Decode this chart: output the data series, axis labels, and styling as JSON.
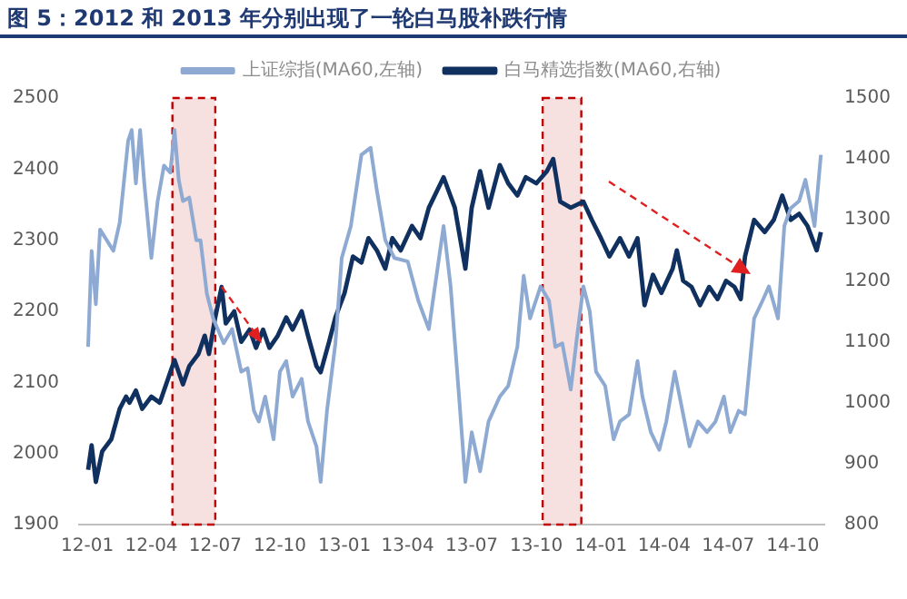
{
  "chart_data": {
    "type": "line",
    "title": "图 5：2012 和 2013 年分别出现了一轮白马股补跌行情",
    "xlim": [
      "2011-12-20",
      "2014-11-15"
    ],
    "xticks": [
      {
        "value": "2012-01",
        "label": "12-01"
      },
      {
        "value": "2012-04",
        "label": "12-04"
      },
      {
        "value": "2012-07",
        "label": "12-07"
      },
      {
        "value": "2012-10",
        "label": "12-10"
      },
      {
        "value": "2013-01",
        "label": "13-01"
      },
      {
        "value": "2013-04",
        "label": "13-04"
      },
      {
        "value": "2013-07",
        "label": "13-07"
      },
      {
        "value": "2013-10",
        "label": "13-10"
      },
      {
        "value": "2014-01",
        "label": "14-01"
      },
      {
        "value": "2014-04",
        "label": "14-04"
      },
      {
        "value": "2014-07",
        "label": "14-07"
      },
      {
        "value": "2014-10",
        "label": "14-10"
      }
    ],
    "ylim": [
      1900,
      2500
    ],
    "yticks": [
      1900,
      2000,
      2100,
      2200,
      2300,
      2400,
      2500
    ],
    "y2lim": [
      800,
      1500
    ],
    "y2ticks": [
      800,
      900,
      1000,
      1100,
      1200,
      1300,
      1400,
      1500
    ],
    "grid": false,
    "legend": "top",
    "marker": "none",
    "line_style": "solid",
    "bands": [
      {
        "axis": "x",
        "from": "2012-05-01",
        "to": "2012-07-01",
        "color": "#c00000"
      },
      {
        "axis": "x",
        "from": "2013-10-10",
        "to": "2013-12-04",
        "color": "#c00000"
      }
    ],
    "series": [
      {
        "name": "上证综指(MA60,左轴)",
        "color": "#8eaad2",
        "axis": "y",
        "x": [
          "2012-01-02",
          "2012-01-07",
          "2012-01-13",
          "2012-01-19",
          "2012-02-07",
          "2012-02-16",
          "2012-02-28",
          "2012-03-04",
          "2012-03-10",
          "2012-03-16",
          "2012-03-22",
          "2012-04-01",
          "2012-04-10",
          "2012-04-19",
          "2012-04-28",
          "2012-05-04",
          "2012-05-10",
          "2012-05-16",
          "2012-05-25",
          "2012-06-04",
          "2012-06-10",
          "2012-06-19",
          "2012-06-28",
          "2012-07-13",
          "2012-07-25",
          "2012-08-07",
          "2012-08-16",
          "2012-08-25",
          "2012-09-01",
          "2012-09-10",
          "2012-09-22",
          "2012-10-01",
          "2012-10-10",
          "2012-10-19",
          "2012-11-01",
          "2012-11-10",
          "2012-11-22",
          "2012-11-28",
          "2012-12-07",
          "2012-12-19",
          "2012-12-28",
          "2013-01-10",
          "2013-01-25",
          "2013-02-07",
          "2013-02-16",
          "2013-02-28",
          "2013-03-13",
          "2013-04-01",
          "2013-04-16",
          "2013-05-01",
          "2013-05-22",
          "2013-06-01",
          "2013-06-13",
          "2013-06-22",
          "2013-07-01",
          "2013-07-13",
          "2013-07-25",
          "2013-08-10",
          "2013-08-22",
          "2013-09-04",
          "2013-09-13",
          "2013-09-22",
          "2013-10-07",
          "2013-10-19",
          "2013-10-28",
          "2013-11-07",
          "2013-11-19",
          "2013-11-28",
          "2013-12-07",
          "2013-12-16",
          "2013-12-25",
          "2014-01-07",
          "2014-01-19",
          "2014-01-28",
          "2014-02-10",
          "2014-02-22",
          "2014-03-01",
          "2014-03-13",
          "2014-03-25",
          "2014-04-04",
          "2014-04-16",
          "2014-04-25",
          "2014-05-07",
          "2014-05-19",
          "2014-06-01",
          "2014-06-13",
          "2014-06-25",
          "2014-07-04",
          "2014-07-16",
          "2014-07-25",
          "2014-08-07",
          "2014-08-19",
          "2014-08-28",
          "2014-09-10",
          "2014-09-19",
          "2014-09-28",
          "2014-10-10",
          "2014-10-19",
          "2014-11-01",
          "2014-11-10"
        ],
        "values": [
          2150,
          2285,
          2210,
          2315,
          2285,
          2325,
          2440,
          2455,
          2380,
          2455,
          2380,
          2275,
          2355,
          2405,
          2395,
          2455,
          2385,
          2355,
          2360,
          2300,
          2300,
          2225,
          2190,
          2155,
          2175,
          2115,
          2120,
          2060,
          2045,
          2080,
          2020,
          2115,
          2130,
          2080,
          2105,
          2045,
          2010,
          1960,
          2060,
          2155,
          2275,
          2320,
          2420,
          2430,
          2370,
          2300,
          2275,
          2270,
          2215,
          2175,
          2320,
          2235,
          2080,
          1960,
          2030,
          1975,
          2045,
          2080,
          2095,
          2150,
          2250,
          2190,
          2235,
          2215,
          2150,
          2155,
          2090,
          2165,
          2235,
          2200,
          2115,
          2095,
          2020,
          2045,
          2055,
          2130,
          2080,
          2030,
          2005,
          2045,
          2115,
          2070,
          2010,
          2045,
          2030,
          2045,
          2080,
          2030,
          2060,
          2055,
          2190,
          2215,
          2235,
          2190,
          2320,
          2345,
          2355,
          2385,
          2320,
          2420
        ]
      },
      {
        "name": "白马精选指数(MA60,右轴)",
        "color": "#10305f",
        "axis": "y2",
        "x": [
          "2012-01-02",
          "2012-01-07",
          "2012-01-13",
          "2012-01-22",
          "2012-02-04",
          "2012-02-16",
          "2012-02-25",
          "2012-03-01",
          "2012-03-10",
          "2012-03-19",
          "2012-04-01",
          "2012-04-13",
          "2012-04-28",
          "2012-05-04",
          "2012-05-16",
          "2012-05-25",
          "2012-06-07",
          "2012-06-16",
          "2012-06-22",
          "2012-07-01",
          "2012-07-10",
          "2012-07-16",
          "2012-07-28",
          "2012-08-07",
          "2012-08-19",
          "2012-08-28",
          "2012-09-07",
          "2012-09-16",
          "2012-09-28",
          "2012-10-10",
          "2012-10-19",
          "2012-11-01",
          "2012-11-10",
          "2012-11-22",
          "2012-11-28",
          "2012-12-10",
          "2012-12-19",
          "2013-01-01",
          "2013-01-13",
          "2013-01-25",
          "2013-02-04",
          "2013-02-16",
          "2013-02-28",
          "2013-03-10",
          "2013-03-22",
          "2013-04-07",
          "2013-04-19",
          "2013-05-01",
          "2013-05-22",
          "2013-06-07",
          "2013-06-22",
          "2013-07-01",
          "2013-07-13",
          "2013-07-25",
          "2013-08-10",
          "2013-08-22",
          "2013-09-04",
          "2013-09-16",
          "2013-10-01",
          "2013-10-16",
          "2013-10-25",
          "2013-11-04",
          "2013-11-19",
          "2013-12-07",
          "2013-12-19",
          "2014-01-01",
          "2014-01-13",
          "2014-01-28",
          "2014-02-10",
          "2014-02-22",
          "2014-03-04",
          "2014-03-16",
          "2014-03-28",
          "2014-04-13",
          "2014-04-19",
          "2014-04-28",
          "2014-05-10",
          "2014-05-22",
          "2014-06-04",
          "2014-06-16",
          "2014-06-28",
          "2014-07-10",
          "2014-07-19",
          "2014-07-25",
          "2014-08-07",
          "2014-08-22",
          "2014-09-04",
          "2014-09-16",
          "2014-09-28",
          "2014-10-10",
          "2014-10-22",
          "2014-11-04",
          "2014-11-10"
        ],
        "values": [
          890,
          930,
          870,
          920,
          940,
          990,
          1010,
          1000,
          1020,
          990,
          1010,
          1000,
          1050,
          1070,
          1030,
          1060,
          1080,
          1110,
          1080,
          1140,
          1190,
          1130,
          1150,
          1100,
          1120,
          1090,
          1120,
          1090,
          1110,
          1140,
          1120,
          1150,
          1110,
          1060,
          1050,
          1100,
          1140,
          1180,
          1240,
          1230,
          1270,
          1250,
          1220,
          1270,
          1250,
          1290,
          1270,
          1320,
          1370,
          1320,
          1220,
          1320,
          1380,
          1320,
          1390,
          1360,
          1340,
          1370,
          1360,
          1380,
          1400,
          1330,
          1320,
          1330,
          1300,
          1270,
          1240,
          1270,
          1240,
          1270,
          1160,
          1210,
          1180,
          1220,
          1250,
          1200,
          1190,
          1160,
          1190,
          1170,
          1200,
          1190,
          1170,
          1240,
          1300,
          1280,
          1300,
          1340,
          1300,
          1310,
          1290,
          1250,
          1280
        ]
      }
    ]
  }
}
